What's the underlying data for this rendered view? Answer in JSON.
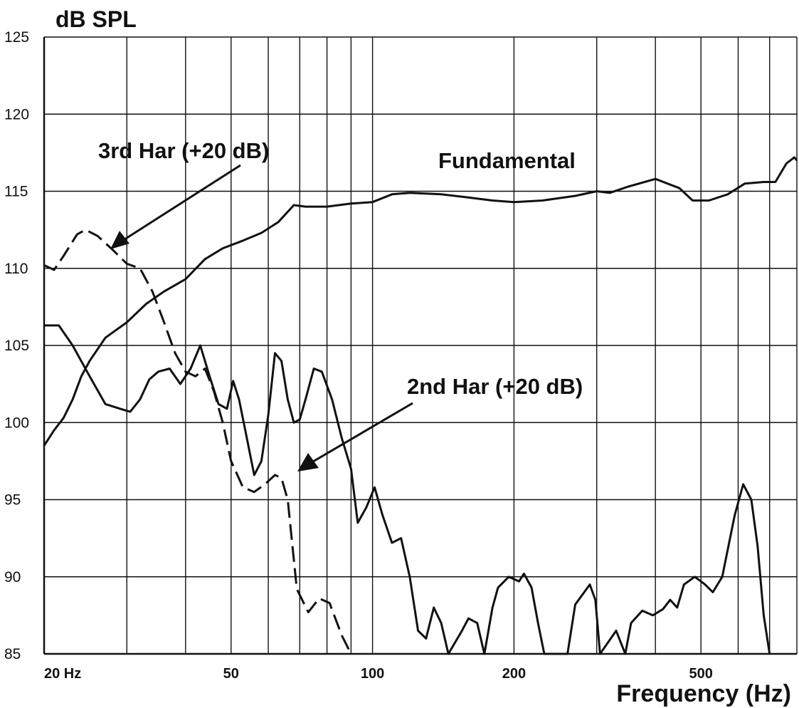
{
  "chart_data": {
    "type": "line",
    "ylabel": "dB SPL",
    "xlabel": "Frequency (Hz)",
    "x_scale": "log",
    "xlim": [
      20,
      800
    ],
    "ylim": [
      85,
      125
    ],
    "grid": true,
    "y_ticks": [
      {
        "value": 85,
        "label": "85"
      },
      {
        "value": 90,
        "label": "90"
      },
      {
        "value": 95,
        "label": "95"
      },
      {
        "value": 100,
        "label": "100"
      },
      {
        "value": 105,
        "label": "105"
      },
      {
        "value": 110,
        "label": "110"
      },
      {
        "value": 115,
        "label": "115"
      },
      {
        "value": 120,
        "label": "120"
      },
      {
        "value": 125,
        "label": "125"
      }
    ],
    "x_ticks": [
      {
        "value": 20,
        "label": "20  Hz"
      },
      {
        "value": 50,
        "label": "50"
      },
      {
        "value": 100,
        "label": "100"
      },
      {
        "value": 200,
        "label": "200"
      },
      {
        "value": 500,
        "label": "500"
      }
    ],
    "x_gridlines": [
      20,
      30,
      40,
      50,
      60,
      70,
      80,
      90,
      100,
      200,
      300,
      400,
      500,
      600,
      700,
      800
    ],
    "annotations": [
      {
        "text": "3rd Har (+20 dB)",
        "points_to_series": "3rd Har (+20 dB)"
      },
      {
        "text": "Fundamental"
      },
      {
        "text": "2nd Har (+20 dB)",
        "points_to_series": "2nd Har (+20 dB)"
      }
    ],
    "series": [
      {
        "name": "Fundamental",
        "style": "solid",
        "points": [
          [
            20,
            98.5
          ],
          [
            21,
            99.5
          ],
          [
            22,
            100.3
          ],
          [
            23,
            101.5
          ],
          [
            24,
            103
          ],
          [
            25,
            104
          ],
          [
            27,
            105.5
          ],
          [
            30,
            106.5
          ],
          [
            33,
            107.7
          ],
          [
            36,
            108.5
          ],
          [
            40,
            109.3
          ],
          [
            44,
            110.6
          ],
          [
            48,
            111.3
          ],
          [
            53,
            111.8
          ],
          [
            58,
            112.3
          ],
          [
            63,
            113
          ],
          [
            68,
            114.1
          ],
          [
            72,
            114.0
          ],
          [
            80,
            114.0
          ],
          [
            90,
            114.2
          ],
          [
            100,
            114.3
          ],
          [
            110,
            114.8
          ],
          [
            120,
            114.9
          ],
          [
            140,
            114.8
          ],
          [
            160,
            114.6
          ],
          [
            180,
            114.4
          ],
          [
            200,
            114.3
          ],
          [
            230,
            114.4
          ],
          [
            270,
            114.7
          ],
          [
            300,
            115.0
          ],
          [
            320,
            114.9
          ],
          [
            350,
            115.3
          ],
          [
            400,
            115.8
          ],
          [
            450,
            115.2
          ],
          [
            480,
            114.4
          ],
          [
            520,
            114.4
          ],
          [
            570,
            114.8
          ],
          [
            620,
            115.5
          ],
          [
            680,
            115.6
          ],
          [
            720,
            115.6
          ],
          [
            760,
            116.8
          ],
          [
            790,
            117.2
          ],
          [
            800,
            117.0
          ]
        ]
      },
      {
        "name": "3rd Har (+20 dB)",
        "style": "dashed",
        "points": [
          [
            20,
            110.2
          ],
          [
            21,
            109.9
          ],
          [
            22,
            110.8
          ],
          [
            23.5,
            112.2
          ],
          [
            24.5,
            112.5
          ],
          [
            26,
            112.1
          ],
          [
            28,
            111.2
          ],
          [
            30,
            110.3
          ],
          [
            32,
            110.0
          ],
          [
            34,
            108.5
          ],
          [
            36,
            106.5
          ],
          [
            38,
            104.5
          ],
          [
            40,
            103.3
          ],
          [
            42,
            103.0
          ],
          [
            44,
            103.5
          ],
          [
            46,
            102.0
          ],
          [
            48,
            100.0
          ],
          [
            50,
            97.5
          ],
          [
            53,
            95.8
          ],
          [
            56,
            95.5
          ],
          [
            59,
            96.0
          ],
          [
            62,
            96.6
          ],
          [
            64,
            96.4
          ],
          [
            66,
            95.0
          ],
          [
            69,
            89.2
          ],
          [
            73,
            87.7
          ],
          [
            77,
            88.6
          ],
          [
            81,
            88.3
          ],
          [
            86,
            86.2
          ],
          [
            90,
            85.0
          ]
        ]
      },
      {
        "name": "2nd Har (+20 dB)",
        "style": "solid",
        "points": [
          [
            20,
            106.3
          ],
          [
            21.5,
            106.3
          ],
          [
            23,
            105.0
          ],
          [
            25,
            103.0
          ],
          [
            27,
            101.2
          ],
          [
            29,
            100.9
          ],
          [
            30.5,
            100.7
          ],
          [
            32,
            101.5
          ],
          [
            33.5,
            102.8
          ],
          [
            35,
            103.3
          ],
          [
            37,
            103.5
          ],
          [
            39,
            102.5
          ],
          [
            41,
            103.5
          ],
          [
            43,
            105.0
          ],
          [
            45,
            103.0
          ],
          [
            47,
            101.2
          ],
          [
            49,
            100.9
          ],
          [
            50.5,
            102.7
          ],
          [
            52,
            101.5
          ],
          [
            54,
            99.0
          ],
          [
            56,
            96.6
          ],
          [
            58,
            97.5
          ],
          [
            60,
            100.5
          ],
          [
            62,
            104.5
          ],
          [
            64,
            104.0
          ],
          [
            66,
            101.5
          ],
          [
            68,
            100.0
          ],
          [
            70,
            100.2
          ],
          [
            72,
            101.5
          ],
          [
            75,
            103.5
          ],
          [
            78,
            103.3
          ],
          [
            82,
            101.5
          ],
          [
            86,
            99.0
          ],
          [
            90,
            97.0
          ],
          [
            93,
            93.5
          ],
          [
            97,
            94.5
          ],
          [
            101,
            95.8
          ],
          [
            105,
            94.0
          ],
          [
            110,
            92.2
          ],
          [
            115,
            92.5
          ],
          [
            120,
            90.0
          ],
          [
            125,
            86.5
          ],
          [
            130,
            86.0
          ],
          [
            135,
            88.0
          ],
          [
            140,
            87.0
          ],
          [
            145,
            85.0
          ],
          [
            155,
            86.5
          ],
          [
            160,
            87.3
          ],
          [
            167,
            87.0
          ],
          [
            173,
            85.0
          ],
          [
            180,
            88.0
          ],
          [
            185,
            89.3
          ],
          [
            195,
            90.0
          ],
          [
            205,
            89.7
          ],
          [
            210,
            90.2
          ],
          [
            218,
            89.3
          ],
          [
            225,
            87.0
          ],
          [
            232,
            85.0
          ],
          [
            250,
            85.0
          ],
          [
            260,
            85.0
          ],
          [
            270,
            88.2
          ],
          [
            290,
            89.5
          ],
          [
            298,
            88.5
          ],
          [
            305,
            85.0
          ],
          [
            330,
            86.5
          ],
          [
            345,
            85.0
          ],
          [
            355,
            87.0
          ],
          [
            375,
            87.8
          ],
          [
            395,
            87.5
          ],
          [
            415,
            87.9
          ],
          [
            430,
            88.5
          ],
          [
            445,
            88.0
          ],
          [
            460,
            89.5
          ],
          [
            485,
            90.0
          ],
          [
            510,
            89.5
          ],
          [
            530,
            89.0
          ],
          [
            555,
            90.0
          ],
          [
            590,
            94.0
          ],
          [
            615,
            96.0
          ],
          [
            640,
            95.0
          ],
          [
            660,
            92.0
          ],
          [
            680,
            87.5
          ],
          [
            700,
            85.0
          ]
        ]
      }
    ]
  }
}
